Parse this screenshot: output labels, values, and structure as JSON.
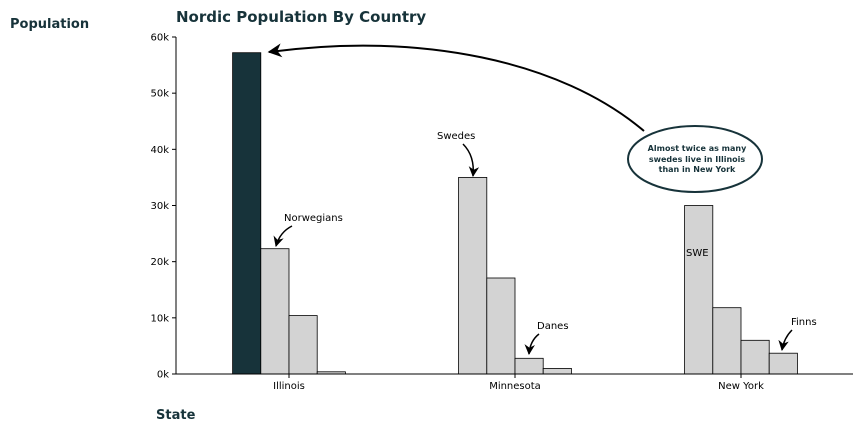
{
  "chart_data": {
    "type": "bar",
    "title": "Nordic Population By Country",
    "xlabel": "State",
    "ylabel": "Population",
    "categories": [
      "Illinois",
      "Minnesota",
      "New York"
    ],
    "series": [
      {
        "values": [
          57200,
          35000,
          30000
        ]
      },
      {
        "values": [
          22300,
          17100,
          11800
        ]
      },
      {
        "values": [
          10400,
          2800,
          6000
        ]
      },
      {
        "values": [
          400,
          1000,
          3700
        ]
      }
    ],
    "ylim": [
      0,
      60000
    ],
    "yticks": [
      0,
      10000,
      20000,
      30000,
      40000,
      50000,
      60000
    ],
    "ytick_labels": [
      "0k",
      "10k",
      "20k",
      "30k",
      "40k",
      "50k",
      "60k"
    ],
    "highlight_color": "#17333a",
    "bar_color": "#d3d3d3",
    "grid": false,
    "annotations": {
      "norwegians": "Norwegians",
      "swedes": "Swedes",
      "danes": "Danes",
      "finns": "Finns",
      "swe": "SWE",
      "callout": [
        "Almost twice as many",
        "swedes live in Illinois",
        "than in New York"
      ]
    }
  }
}
